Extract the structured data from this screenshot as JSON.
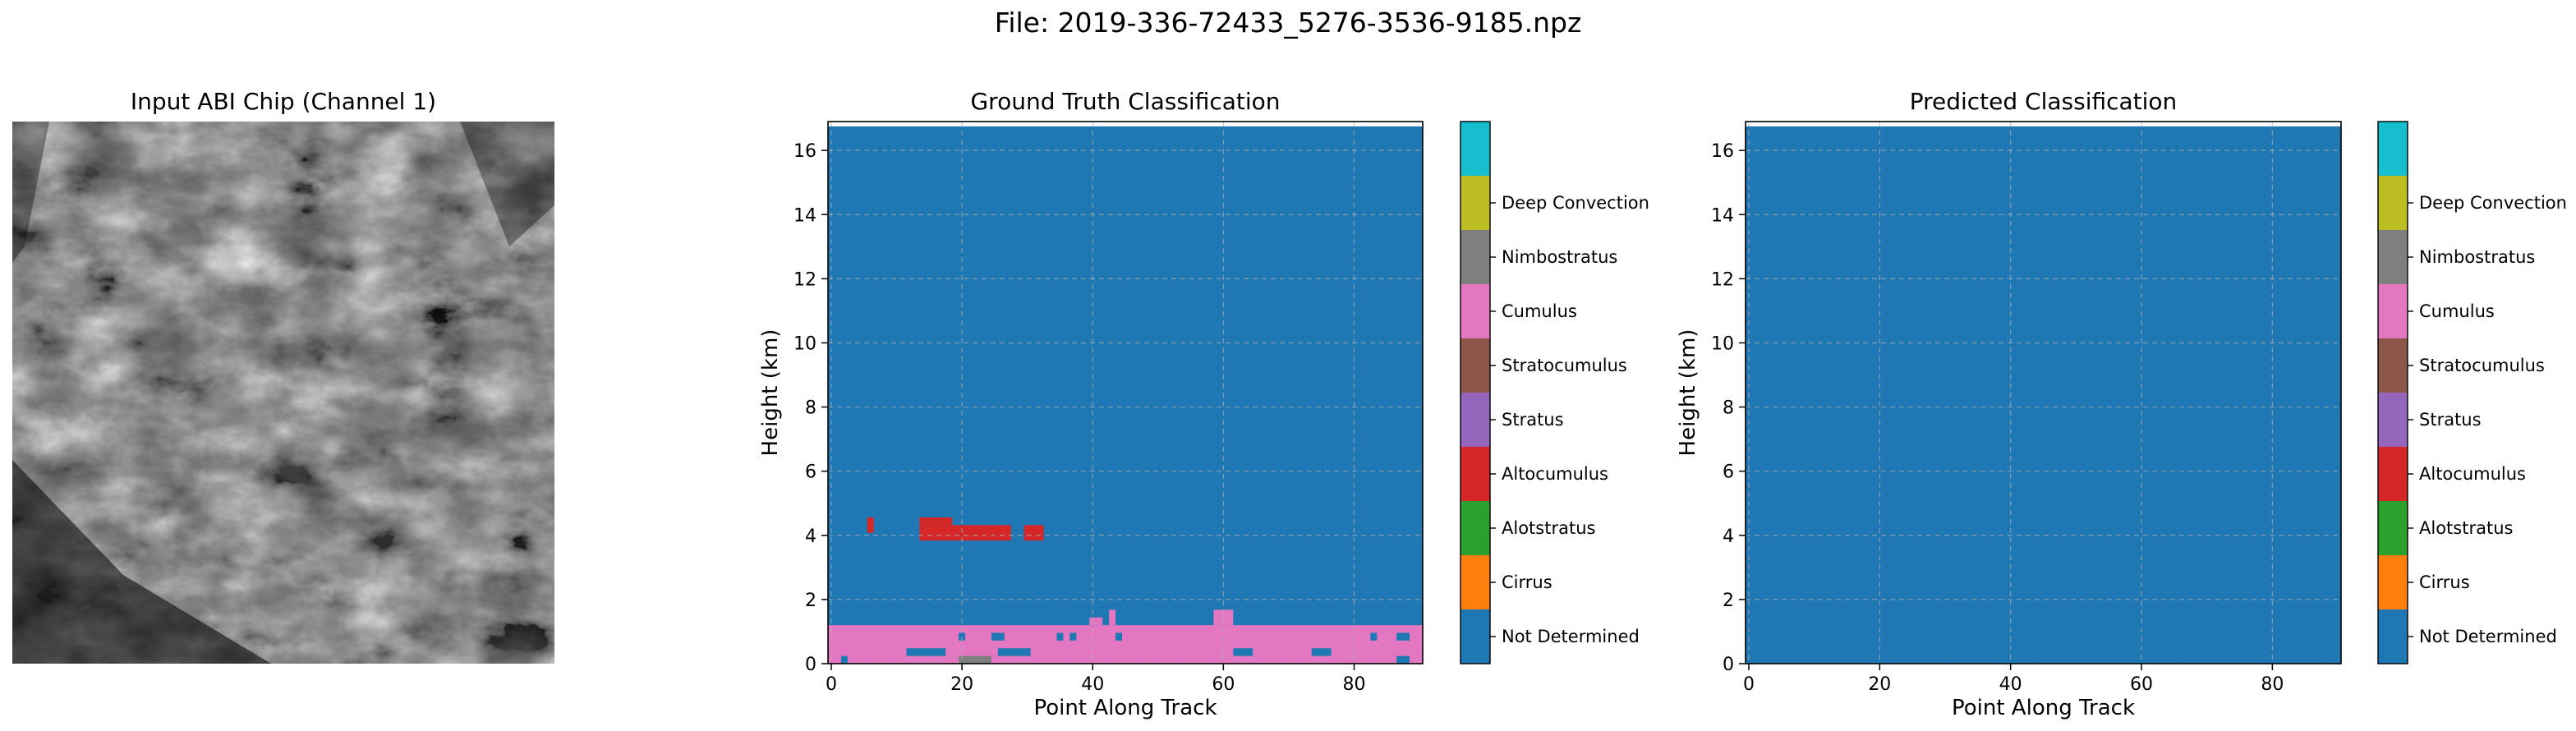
{
  "figure": {
    "title": "File: 2019-336-72433_5276-3536-9185.npz"
  },
  "input_panel": {
    "title": "Input ABI Chip (Channel 1)",
    "image": "grayscale satellite cloud texture"
  },
  "class_colors": [
    "#1f77b4",
    "#ff7f0e",
    "#2ca02c",
    "#d62728",
    "#9467bd",
    "#8c564b",
    "#e377c2",
    "#7f7f7f",
    "#bcbd22",
    "#17becf"
  ],
  "chart_data": [
    {
      "type": "heatmap",
      "title": "Ground Truth Classification",
      "xlabel": "Point Along Track",
      "ylabel": "Height (km)",
      "xlim": [
        -0.5,
        90.5
      ],
      "ylim": [
        0,
        16.9
      ],
      "xticks": [
        0,
        20,
        40,
        60,
        80
      ],
      "yticks": [
        0,
        2,
        4,
        6,
        8,
        10,
        12,
        14,
        16
      ],
      "grid": true,
      "background_class": 0,
      "data_top_km": 16.75,
      "row_height_km": 0.24,
      "cells": [
        {
          "class": 6,
          "x": [
            -0.5,
            90.5
          ],
          "y": [
            0.24,
            1.2
          ]
        },
        {
          "class": 6,
          "x": [
            -0.5,
            1.5
          ],
          "y": [
            0.0,
            0.24
          ]
        },
        {
          "class": 6,
          "x": [
            2.5,
            86.5
          ],
          "y": [
            0.0,
            0.24
          ]
        },
        {
          "class": 6,
          "x": [
            88.5,
            90.5
          ],
          "y": [
            0.0,
            0.24
          ]
        },
        {
          "class": 7,
          "x": [
            19.5,
            24.5
          ],
          "y": [
            0.0,
            0.24
          ]
        },
        {
          "class": 6,
          "x": [
            -0.5,
            90.5
          ],
          "y": [
            0.24,
            0.48
          ]
        },
        {
          "class": 0,
          "x": [
            11.5,
            17.5
          ],
          "y": [
            0.24,
            0.48
          ]
        },
        {
          "class": 0,
          "x": [
            25.5,
            30.5
          ],
          "y": [
            0.24,
            0.48
          ]
        },
        {
          "class": 0,
          "x": [
            61.5,
            64.5
          ],
          "y": [
            0.24,
            0.48
          ]
        },
        {
          "class": 0,
          "x": [
            73.5,
            76.5
          ],
          "y": [
            0.24,
            0.48
          ]
        },
        {
          "class": 0,
          "x": [
            19.5,
            20.5
          ],
          "y": [
            0.72,
            0.96
          ]
        },
        {
          "class": 0,
          "x": [
            24.5,
            26.5
          ],
          "y": [
            0.72,
            0.96
          ]
        },
        {
          "class": 0,
          "x": [
            34.5,
            35.5
          ],
          "y": [
            0.72,
            0.96
          ]
        },
        {
          "class": 0,
          "x": [
            36.5,
            37.5
          ],
          "y": [
            0.72,
            0.96
          ]
        },
        {
          "class": 0,
          "x": [
            43.5,
            44.5
          ],
          "y": [
            0.72,
            0.96
          ]
        },
        {
          "class": 0,
          "x": [
            82.5,
            83.5
          ],
          "y": [
            0.72,
            0.96
          ]
        },
        {
          "class": 0,
          "x": [
            86.5,
            88.5
          ],
          "y": [
            0.72,
            0.96
          ]
        },
        {
          "class": 6,
          "x": [
            39.5,
            41.5
          ],
          "y": [
            1.2,
            1.44
          ]
        },
        {
          "class": 6,
          "x": [
            42.5,
            43.5
          ],
          "y": [
            1.2,
            1.68
          ]
        },
        {
          "class": 6,
          "x": [
            58.5,
            61.5
          ],
          "y": [
            1.2,
            1.68
          ]
        },
        {
          "class": 3,
          "x": [
            5.5,
            6.5
          ],
          "y": [
            4.08,
            4.56
          ]
        },
        {
          "class": 3,
          "x": [
            13.5,
            18.5
          ],
          "y": [
            4.32,
            4.56
          ]
        },
        {
          "class": 3,
          "x": [
            13.5,
            27.5
          ],
          "y": [
            3.84,
            4.32
          ]
        },
        {
          "class": 3,
          "x": [
            29.5,
            32.5
          ],
          "y": [
            3.84,
            4.32
          ]
        }
      ]
    },
    {
      "type": "heatmap",
      "title": "Predicted Classification",
      "xlabel": "Point Along Track",
      "ylabel": "Height (km)",
      "xlim": [
        -0.5,
        90.5
      ],
      "ylim": [
        0,
        16.9
      ],
      "xticks": [
        0,
        20,
        40,
        60,
        80
      ],
      "yticks": [
        0,
        2,
        4,
        6,
        8,
        10,
        12,
        14,
        16
      ],
      "grid": true,
      "background_class": 0,
      "data_top_km": 16.75,
      "row_height_km": 0.24,
      "cells": []
    }
  ],
  "colorbar": {
    "labels": [
      "Not Determined",
      "Cirrus",
      "Alotstratus",
      "Altocumulus",
      "Stratus",
      "Stratocumulus",
      "Cumulus",
      "Nimbostratus",
      "Deep Convection"
    ]
  }
}
